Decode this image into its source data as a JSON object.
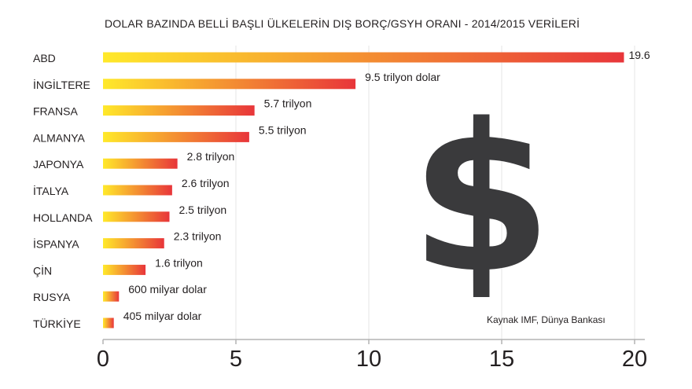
{
  "title": "DOLAR BAZINDA BELLİ BAŞLI ÜLKELERİN DIŞ BORÇ/GSYH ORANI - 2014/2015 VERİLERİ",
  "source": "Kaynak IMF, Dünya Bankası",
  "dollar_symbol": "$",
  "colors": {
    "bar_start": "#ffe92a",
    "bar_end": "#e8353a",
    "axis": "#b3b3b3",
    "grid": "#e6e6e6",
    "text": "#231f20",
    "dollar": "#3a3a3c"
  },
  "chart_data": {
    "type": "bar",
    "orientation": "horizontal",
    "title": "DOLAR BAZINDA BELLİ BAŞLI ÜLKELERİN DIŞ BORÇ/GSYH ORANI - 2014/2015 VERİLERİ",
    "categories": [
      "ABD",
      "İNGİLTERE",
      "FRANSA",
      "ALMANYA",
      "JAPONYA",
      "İTALYA",
      "HOLLANDA",
      "İSPANYA",
      "ÇİN",
      "RUSYA",
      "TÜRKİYE"
    ],
    "values": [
      19.6,
      9.5,
      5.7,
      5.5,
      2.8,
      2.6,
      2.5,
      2.3,
      1.6,
      0.6,
      0.405
    ],
    "data_labels": [
      "19.6",
      "9.5 trilyon dolar",
      "5.7 trilyon",
      "5.5 trilyon",
      "2.8 trilyon",
      "2.6 trilyon",
      "2.5 trilyon",
      "2.3 trilyon",
      "1.6 trilyon",
      "600 milyar dolar",
      "405 milyar dolar"
    ],
    "xlim": [
      0,
      20
    ],
    "xticks": [
      0,
      5,
      10,
      15,
      20
    ],
    "grid": true,
    "legend": "none"
  }
}
